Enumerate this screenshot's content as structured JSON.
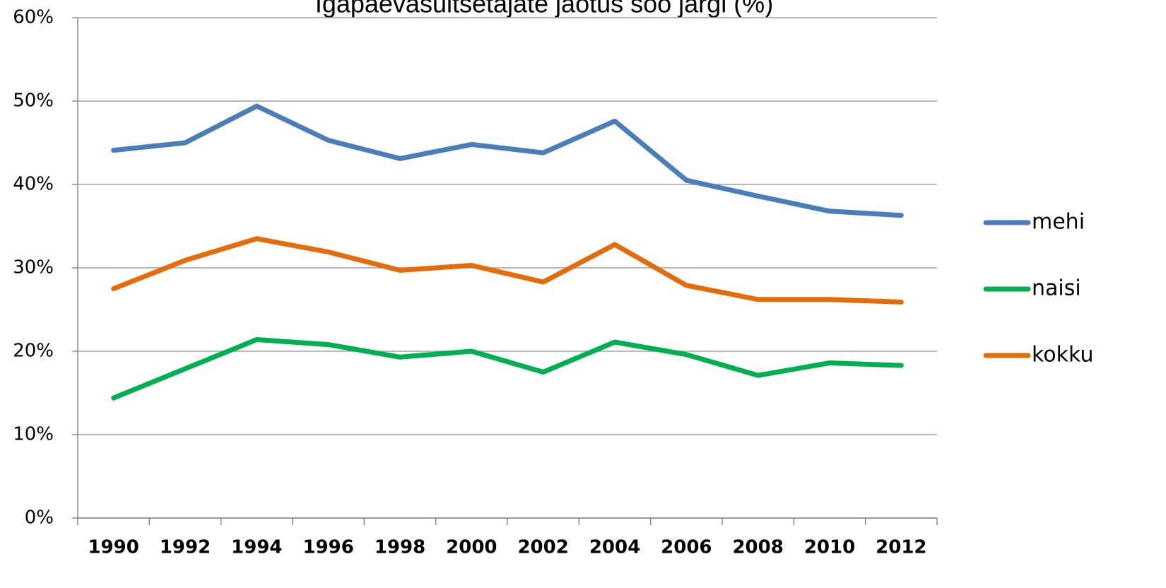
{
  "chart_data": {
    "type": "line",
    "title": "Igapäevasuitsetajate jaotus soo järgi (%)",
    "categories": [
      "1990",
      "1992",
      "1994",
      "1996",
      "1998",
      "2000",
      "2002",
      "2004",
      "2006",
      "2008",
      "2010",
      "2012"
    ],
    "series": [
      {
        "name": "mehi",
        "color": "#4a7ebb",
        "values": [
          44.1,
          45.0,
          49.4,
          45.3,
          43.1,
          44.8,
          43.8,
          47.6,
          40.5,
          38.6,
          36.8,
          36.3
        ]
      },
      {
        "name": "naisi",
        "color": "#00b050",
        "values": [
          14.4,
          17.9,
          21.4,
          20.8,
          19.3,
          20.0,
          17.5,
          21.1,
          19.6,
          17.1,
          18.6,
          18.3
        ]
      },
      {
        "name": "kokku",
        "color": "#e46c0a",
        "values": [
          27.5,
          30.9,
          33.5,
          31.9,
          29.7,
          30.3,
          28.3,
          32.8,
          27.9,
          26.2,
          26.2,
          25.9
        ]
      }
    ],
    "ylim": [
      0,
      60
    ],
    "yticks": [
      {
        "value": 0,
        "label": "0%"
      },
      {
        "value": 10,
        "label": "10%"
      },
      {
        "value": 20,
        "label": "20%"
      },
      {
        "value": 30,
        "label": "30%"
      },
      {
        "value": 40,
        "label": "40%"
      },
      {
        "value": 50,
        "label": "50%"
      },
      {
        "value": 60,
        "label": "60%"
      }
    ],
    "grid": true,
    "legend": "right"
  }
}
